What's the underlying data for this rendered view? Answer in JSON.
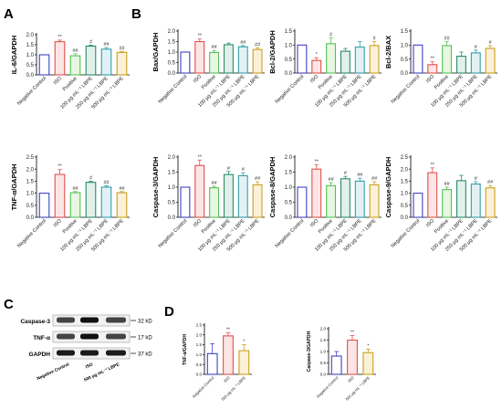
{
  "panel_letters": [
    "A",
    "B",
    "C",
    "D"
  ],
  "group_labels": [
    "Negative Control",
    "ISO",
    "Positive",
    "100 μg mL⁻¹ LBPE",
    "250 μg mL⁻¹ LBPE",
    "500 μg mL⁻¹ LBPE"
  ],
  "group_colors": [
    "#4040c8",
    "#e05050",
    "#58c058",
    "#2a8a6a",
    "#2f9fa8",
    "#c9a020"
  ],
  "group_fills": [
    "#ffffff",
    "#fde5e5",
    "#e7f7e2",
    "#e1f1ea",
    "#e2f2f4",
    "#fbf1d8"
  ],
  "western_blot": {
    "rows": [
      {
        "protein": "Caspase-3",
        "size": "32 kD"
      },
      {
        "protein": "TNF-α",
        "size": "17 kD"
      },
      {
        "protein": "GAPDH",
        "size": "37 kD"
      }
    ],
    "lanes": [
      "Negative Control",
      "ISO",
      "500 μg mL⁻¹ LBPE"
    ]
  },
  "chart_data": [
    {
      "panel": "A",
      "type": "bar",
      "ylabel": "IL-6/GAPDH",
      "ylim": [
        0,
        2.0
      ],
      "yticks": [
        "0.0",
        "0.5",
        "1.0",
        "1.5",
        "2.0"
      ],
      "categories": [
        "Negative Control",
        "ISO",
        "Positive",
        "100 μg mL⁻¹ LBPE",
        "250 μg mL⁻¹ LBPE",
        "500 μg mL⁻¹ LBPE"
      ],
      "values": [
        1.0,
        1.65,
        0.95,
        1.43,
        1.28,
        1.12
      ],
      "errors": [
        0,
        0.08,
        0.1,
        0.05,
        0.08,
        0.05
      ],
      "annotations": [
        "",
        "**",
        "##",
        "#",
        "##",
        "##"
      ]
    },
    {
      "panel": "B1",
      "type": "bar",
      "ylabel": "Bax/GAPDH",
      "ylim": [
        0,
        2.0
      ],
      "yticks": [
        "0.0",
        "0.5",
        "1.0",
        "1.5",
        "2.0"
      ],
      "categories": [
        "Negative Control",
        "ISO",
        "Positive",
        "100 μg mL⁻¹ LBPE",
        "250 μg mL⁻¹ LBPE",
        "500 μg mL⁻¹ LBPE"
      ],
      "values": [
        1.0,
        1.5,
        0.98,
        1.35,
        1.25,
        1.12
      ],
      "errors": [
        0,
        0.12,
        0.1,
        0.08,
        0.06,
        0.08
      ],
      "annotations": [
        "",
        "**",
        "##",
        "",
        "##",
        "##"
      ]
    },
    {
      "panel": "B2",
      "type": "bar",
      "ylabel": "Bcl-2/GAPDH",
      "ylim": [
        0,
        1.5
      ],
      "yticks": [
        "0.0",
        "0.5",
        "1.0",
        "1.5"
      ],
      "categories": [
        "Negative Control",
        "ISO",
        "Positive",
        "100 μg mL⁻¹ LBPE",
        "250 μg mL⁻¹ LBPE",
        "500 μg mL⁻¹ LBPE"
      ],
      "values": [
        1.0,
        0.45,
        1.05,
        0.78,
        0.93,
        0.98
      ],
      "errors": [
        0,
        0.1,
        0.2,
        0.1,
        0.2,
        0.15
      ],
      "annotations": [
        "",
        "*",
        "#",
        "",
        "",
        "#"
      ]
    },
    {
      "panel": "B3",
      "type": "bar",
      "ylabel": "Bcl-2/BAX",
      "ylim": [
        0,
        1.5
      ],
      "yticks": [
        "0.0",
        "0.5",
        "1.0",
        "1.5"
      ],
      "categories": [
        "Negative Control",
        "ISO",
        "Positive",
        "100 μg mL⁻¹ LBPE",
        "250 μg mL⁻¹ LBPE",
        "500 μg mL⁻¹ LBPE"
      ],
      "values": [
        1.0,
        0.3,
        0.98,
        0.6,
        0.72,
        0.88
      ],
      "errors": [
        0,
        0.1,
        0.15,
        0.15,
        0.1,
        0.1
      ],
      "annotations": [
        "",
        "**",
        "##",
        "",
        "#",
        "#"
      ]
    },
    {
      "panel": "A2",
      "type": "bar",
      "ylabel": "TNF-α/GAPDH",
      "ylim": [
        0,
        2.5
      ],
      "yticks": [
        "0.0",
        "0.5",
        "1.0",
        "1.5",
        "2.0",
        "2.5"
      ],
      "categories": [
        "Negative Control",
        "ISO",
        "Positive",
        "100 μg mL⁻¹ LBPE",
        "250 μg mL⁻¹ LBPE",
        "500 μg mL⁻¹ LBPE"
      ],
      "values": [
        1.0,
        1.78,
        1.02,
        1.45,
        1.25,
        1.02
      ],
      "errors": [
        0,
        0.2,
        0.05,
        0.05,
        0.06,
        0.05
      ],
      "annotations": [
        "",
        "**",
        "##",
        "#",
        "##",
        "##"
      ]
    },
    {
      "panel": "B4",
      "type": "bar",
      "ylabel": "Caspase-3/GAPDH",
      "ylim": [
        0,
        2.0
      ],
      "yticks": [
        "0.0",
        "0.5",
        "1.0",
        "1.5",
        "2.0"
      ],
      "categories": [
        "Negative Control",
        "ISO",
        "Positive",
        "100 μg mL⁻¹ LBPE",
        "250 μg mL⁻¹ LBPE",
        "500 μg mL⁻¹ LBPE"
      ],
      "values": [
        1.0,
        1.72,
        0.98,
        1.42,
        1.38,
        1.08
      ],
      "errors": [
        0,
        0.18,
        0.05,
        0.1,
        0.1,
        0.1
      ],
      "annotations": [
        "",
        "**",
        "##",
        "#",
        "#",
        "##"
      ]
    },
    {
      "panel": "B5",
      "type": "bar",
      "ylabel": "Caspase-8/GAPDH",
      "ylim": [
        0,
        2.0
      ],
      "yticks": [
        "0.0",
        "0.5",
        "1.0",
        "1.5",
        "2.0"
      ],
      "categories": [
        "Negative Control",
        "ISO",
        "Positive",
        "100 μg mL⁻¹ LBPE",
        "250 μg mL⁻¹ LBPE",
        "500 μg mL⁻¹ LBPE"
      ],
      "values": [
        1.0,
        1.6,
        1.05,
        1.28,
        1.2,
        1.08
      ],
      "errors": [
        0,
        0.15,
        0.1,
        0.08,
        0.1,
        0.1
      ],
      "annotations": [
        "",
        "**",
        "##",
        "#",
        "##",
        "##"
      ]
    },
    {
      "panel": "B6",
      "type": "bar",
      "ylabel": "Caspase-9/GAPDH",
      "ylim": [
        0,
        2.5
      ],
      "yticks": [
        "0.0",
        "0.5",
        "1.0",
        "1.5",
        "2.0",
        "2.5"
      ],
      "categories": [
        "Negative Control",
        "ISO",
        "Positive",
        "100 μg mL⁻¹ LBPE",
        "250 μg mL⁻¹ LBPE",
        "500 μg mL⁻¹ LBPE"
      ],
      "values": [
        1.0,
        1.85,
        1.15,
        1.52,
        1.38,
        1.22
      ],
      "errors": [
        0,
        0.2,
        0.1,
        0.22,
        0.1,
        0.1
      ],
      "annotations": [
        "",
        "**",
        "##",
        "",
        "#",
        "##"
      ]
    },
    {
      "panel": "D1",
      "type": "bar",
      "ylabel": "TNF-α/GAPDH",
      "ylim": [
        0,
        2.5
      ],
      "yticks": [
        "0.0",
        "0.5",
        "1.0",
        "1.5",
        "2.0",
        "2.5"
      ],
      "categories": [
        "Negative Control",
        "ISO",
        "500 μg mL⁻¹ LBPE"
      ],
      "values": [
        1.05,
        1.95,
        1.2
      ],
      "errors": [
        0.5,
        0.15,
        0.3
      ],
      "annotations": [
        "",
        "**",
        "*"
      ],
      "colorIndex": [
        0,
        1,
        5
      ]
    },
    {
      "panel": "D2",
      "type": "bar",
      "ylabel": "Caspase-3/GAPDH",
      "ylim": [
        0,
        2.0
      ],
      "yticks": [
        "0.0",
        "0.5",
        "1.0",
        "1.5",
        "2.0"
      ],
      "categories": [
        "Negative Control",
        "ISO",
        "500 μg mL⁻¹ LBPE"
      ],
      "values": [
        0.8,
        1.5,
        0.95
      ],
      "errors": [
        0.2,
        0.2,
        0.15
      ],
      "annotations": [
        "",
        "**",
        "*"
      ],
      "colorIndex": [
        0,
        1,
        5
      ]
    }
  ]
}
